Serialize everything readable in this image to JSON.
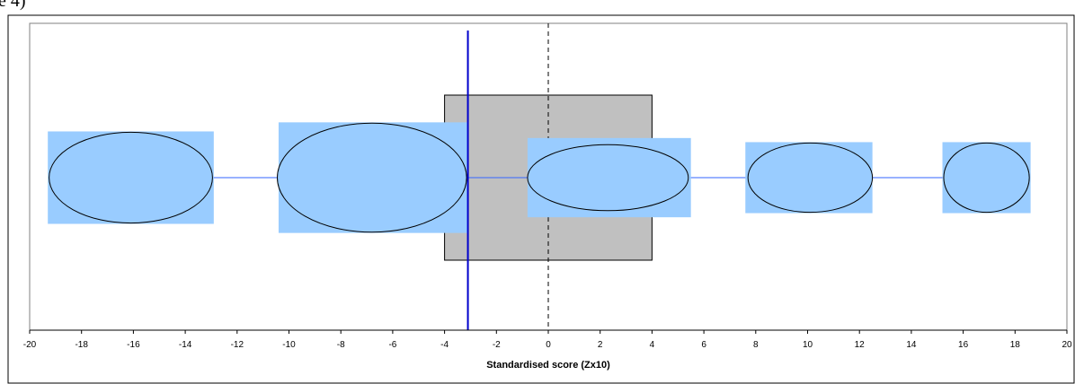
{
  "page_top_text": "e 4)",
  "chart_data": {
    "type": "scatter",
    "title": "",
    "xlabel": "Standardised score (Zx10)",
    "ylabel": "",
    "xlim": [
      -20,
      20
    ],
    "xticks": [
      -20,
      -18,
      -16,
      -14,
      -12,
      -10,
      -8,
      -6,
      -4,
      -2,
      0,
      2,
      4,
      6,
      8,
      10,
      12,
      14,
      16,
      18,
      20
    ],
    "tick_labels": [
      "-20",
      "-18",
      "-16",
      "-14",
      "-12",
      "-10",
      "-8",
      "-6",
      "-4",
      "-2",
      "0",
      "2",
      "4",
      "6",
      "8",
      "10",
      "12",
      "14",
      "16",
      "18",
      "20"
    ],
    "grid": false,
    "legend": "none",
    "reference_line_x": 0,
    "threshold_line_x": -3.1,
    "central_box": {
      "x_range": [
        -4,
        4
      ],
      "y_range": [
        -1,
        1
      ],
      "fill": "#c0c0c0"
    },
    "connector_line_y": 0,
    "points": [
      {
        "x": -16.1,
        "x_range": [
          -19.3,
          -12.9
        ],
        "y_range": [
          -0.56,
          0.56
        ],
        "ellipse_rx": 3.15,
        "ellipse_ry": 0.55
      },
      {
        "x": -6.8,
        "x_range": [
          -10.4,
          -3.1
        ],
        "y_range": [
          -0.67,
          0.67
        ],
        "ellipse_rx": 3.65,
        "ellipse_ry": 0.66
      },
      {
        "x": 2.3,
        "x_range": [
          -0.8,
          5.5
        ],
        "y_range": [
          -0.48,
          0.48
        ],
        "ellipse_rx": 3.1,
        "ellipse_ry": 0.4
      },
      {
        "x": 10.1,
        "x_range": [
          7.6,
          12.5
        ],
        "y_range": [
          -0.43,
          0.43
        ],
        "ellipse_rx": 2.4,
        "ellipse_ry": 0.42
      },
      {
        "x": 16.9,
        "x_range": [
          15.2,
          18.6
        ],
        "y_range": [
          -0.43,
          0.43
        ],
        "ellipse_rx": 1.65,
        "ellipse_ry": 0.42
      }
    ],
    "point_fill": "#99ccff",
    "ellipse_fill": "#99ccff",
    "threshold_color": "#0000cc",
    "connector_color": "#3366ff"
  }
}
